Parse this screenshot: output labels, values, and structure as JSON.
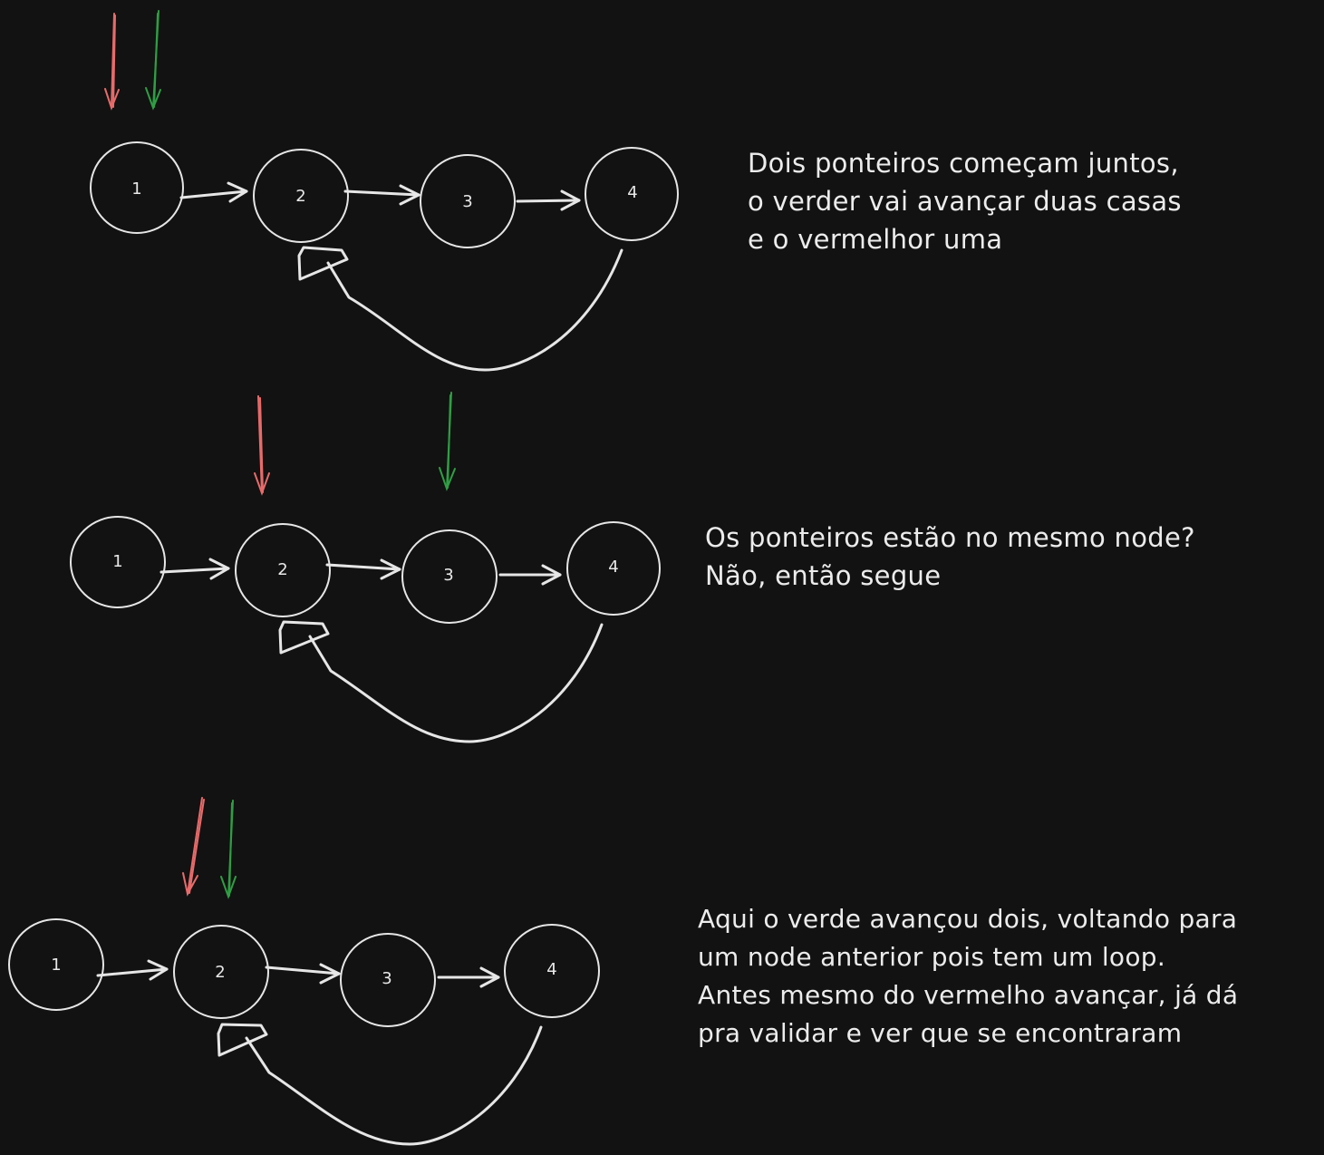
{
  "colors": {
    "background": "#121212",
    "stroke": "#e6e6e6",
    "fast_pointer": "#2f9e44",
    "slow_pointer": "#e86b6b"
  },
  "steps": [
    {
      "nodes": [
        "1",
        "2",
        "3",
        "4"
      ],
      "caption": [
        "Dois ponteiros começam juntos,",
        "o verder vai avançar duas casas",
        "e o vermelhor uma"
      ]
    },
    {
      "nodes": [
        "1",
        "2",
        "3",
        "4"
      ],
      "caption": [
        "Os ponteiros estão no mesmo node?",
        "Não, então segue"
      ]
    },
    {
      "nodes": [
        "1",
        "2",
        "3",
        "4"
      ],
      "caption": [
        "Aqui o verde avançou dois, voltando para",
        "um node anterior pois tem um loop.",
        "Antes mesmo do vermelho avançar, já dá",
        "pra validar e ver que se encontraram"
      ]
    }
  ]
}
